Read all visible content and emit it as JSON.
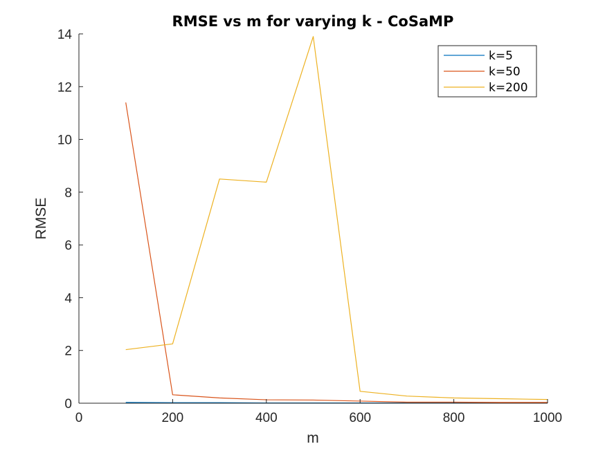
{
  "chart_data": {
    "type": "line",
    "title": "RMSE vs m for varying k - CoSaMP",
    "xlabel": "m",
    "ylabel": "RMSE",
    "xlim": [
      0,
      1000
    ],
    "ylim": [
      0,
      14
    ],
    "xticks": [
      "0",
      "200",
      "400",
      "600",
      "800",
      "1000"
    ],
    "yticks": [
      "0",
      "2",
      "4",
      "6",
      "8",
      "10",
      "12",
      "14"
    ],
    "grid": false,
    "legend_position": "top-right",
    "series": [
      {
        "name": "k=5",
        "color": "#0072BD",
        "x": [
          100,
          200,
          300,
          400,
          500,
          600,
          700,
          800,
          900,
          1000
        ],
        "y": [
          0.03,
          0.02,
          0.02,
          0.01,
          0.01,
          0.01,
          0.01,
          0.01,
          0.01,
          0.01
        ]
      },
      {
        "name": "k=50",
        "color": "#D95319",
        "x": [
          100,
          200,
          300,
          400,
          500,
          600,
          700,
          800,
          900,
          1000
        ],
        "y": [
          11.4,
          0.32,
          0.2,
          0.13,
          0.12,
          0.08,
          0.04,
          0.04,
          0.03,
          0.03
        ]
      },
      {
        "name": "k=200",
        "color": "#EDB120",
        "x": [
          100,
          200,
          300,
          400,
          500,
          600,
          700,
          800,
          900,
          1000
        ],
        "y": [
          2.03,
          2.25,
          8.5,
          8.38,
          13.9,
          0.45,
          0.27,
          0.2,
          0.17,
          0.14
        ]
      }
    ]
  }
}
